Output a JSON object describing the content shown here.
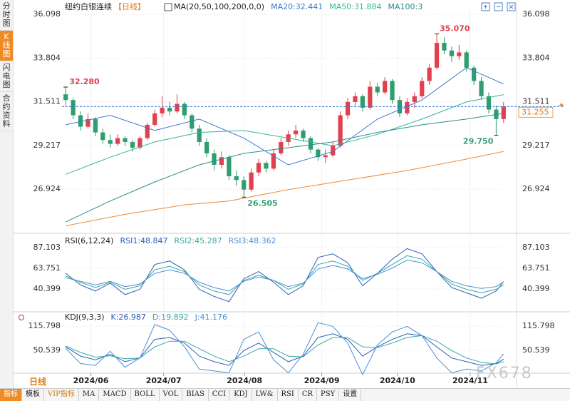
{
  "sidebar": [
    "分时图",
    "K线图",
    "闪电图",
    "合约资料"
  ],
  "period_tab": "日线",
  "toolbar": [
    "指标",
    "模板",
    "VIP指标",
    "MA",
    "MACD",
    "BOLL",
    "VOL",
    "BIAS",
    "CCI",
    "KDJ",
    "LW&",
    "RSI",
    "CR",
    "PSY",
    "设置"
  ],
  "watermark": "FX678",
  "chart_data": [
    {
      "type": "candlestick",
      "title": "纽约白银连续",
      "subtitle": "【日线】",
      "legend_title": "MA(20,50,100,200,0,0)",
      "up_color": "#e2404f",
      "down_color": "#2e9e6e",
      "xlim": [
        -0.5,
        59.5
      ],
      "xticks": [
        {
          "value": 3.4,
          "label": "2024/06"
        },
        {
          "value": 13.2,
          "label": "2024/07"
        },
        {
          "value": 24.1,
          "label": "2024/08"
        },
        {
          "value": 34.5,
          "label": "2024/09"
        },
        {
          "value": 44.7,
          "label": "2024/10"
        },
        {
          "value": 54.5,
          "label": "2024/11"
        }
      ],
      "ylim": [
        24.68,
        36.55
      ],
      "yticks": [
        {
          "value": 36.098,
          "label": "36.098"
        },
        {
          "value": 33.804,
          "label": "33.804"
        },
        {
          "value": 31.511,
          "label": "31.511"
        },
        {
          "value": 29.217,
          "label": "29.217"
        },
        {
          "value": 26.924,
          "label": "26.924"
        }
      ],
      "grid": true,
      "ohlc": [
        [
          31.9,
          32.28,
          31.3,
          31.6
        ],
        [
          31.6,
          31.7,
          30.6,
          30.8
        ],
        [
          30.8,
          31.0,
          30.0,
          30.2
        ],
        [
          30.2,
          30.9,
          30.1,
          30.6
        ],
        [
          30.6,
          30.7,
          29.7,
          29.9
        ],
        [
          29.9,
          30.1,
          29.3,
          29.5
        ],
        [
          29.5,
          29.8,
          29.1,
          29.3
        ],
        [
          29.3,
          29.8,
          29.2,
          29.6
        ],
        [
          29.6,
          29.7,
          29.2,
          29.4
        ],
        [
          29.4,
          29.5,
          28.9,
          29.1
        ],
        [
          29.1,
          29.7,
          29.0,
          29.6
        ],
        [
          29.6,
          30.4,
          29.5,
          30.3
        ],
        [
          30.3,
          31.1,
          30.2,
          30.9
        ],
        [
          30.9,
          31.8,
          30.7,
          31.2
        ],
        [
          31.2,
          31.5,
          30.8,
          31.0
        ],
        [
          31.0,
          31.9,
          30.9,
          31.4
        ],
        [
          31.4,
          31.5,
          30.6,
          30.8
        ],
        [
          30.8,
          30.9,
          29.9,
          30.1
        ],
        [
          30.1,
          30.3,
          29.2,
          29.4
        ],
        [
          29.4,
          29.6,
          28.6,
          28.8
        ],
        [
          28.8,
          29.0,
          27.9,
          28.2
        ],
        [
          28.2,
          28.9,
          28.0,
          28.6
        ],
        [
          28.6,
          28.7,
          27.4,
          27.6
        ],
        [
          27.6,
          27.9,
          27.1,
          27.4
        ],
        [
          27.4,
          27.6,
          26.505,
          26.9
        ],
        [
          26.9,
          28.0,
          26.8,
          27.8
        ],
        [
          27.8,
          28.5,
          27.6,
          28.3
        ],
        [
          28.3,
          28.4,
          27.8,
          28.0
        ],
        [
          28.0,
          29.0,
          27.9,
          28.8
        ],
        [
          28.8,
          29.6,
          28.7,
          29.4
        ],
        [
          29.4,
          30.0,
          29.2,
          29.8
        ],
        [
          29.8,
          30.3,
          29.6,
          30.0
        ],
        [
          30.0,
          30.1,
          29.4,
          29.6
        ],
        [
          29.6,
          29.7,
          28.8,
          29.0
        ],
        [
          29.0,
          29.1,
          28.4,
          28.6
        ],
        [
          28.6,
          29.0,
          28.3,
          28.7
        ],
        [
          28.7,
          29.4,
          28.6,
          29.2
        ],
        [
          29.2,
          31.0,
          29.1,
          30.8
        ],
        [
          30.8,
          31.7,
          30.6,
          31.5
        ],
        [
          31.5,
          32.0,
          31.3,
          31.8
        ],
        [
          31.8,
          31.9,
          31.0,
          31.2
        ],
        [
          31.2,
          32.6,
          31.1,
          32.3
        ],
        [
          32.3,
          32.5,
          31.8,
          32.0
        ],
        [
          32.0,
          32.8,
          31.9,
          32.6
        ],
        [
          32.6,
          32.7,
          31.4,
          31.6
        ],
        [
          31.6,
          31.8,
          30.7,
          30.9
        ],
        [
          30.9,
          31.7,
          30.8,
          31.5
        ],
        [
          31.5,
          32.0,
          31.2,
          31.8
        ],
        [
          31.8,
          32.8,
          31.7,
          32.6
        ],
        [
          32.6,
          33.5,
          32.4,
          33.3
        ],
        [
          33.3,
          35.07,
          33.2,
          34.6
        ],
        [
          34.6,
          34.9,
          34.0,
          34.2
        ],
        [
          34.2,
          34.4,
          33.6,
          33.9
        ],
        [
          33.9,
          34.5,
          33.7,
          34.1
        ],
        [
          34.1,
          34.2,
          33.1,
          33.3
        ],
        [
          33.3,
          33.4,
          32.4,
          32.6
        ],
        [
          32.6,
          32.8,
          31.6,
          31.8
        ],
        [
          31.8,
          32.0,
          30.9,
          31.1
        ],
        [
          31.1,
          31.3,
          29.75,
          30.6
        ],
        [
          30.6,
          31.5,
          30.4,
          31.255
        ]
      ],
      "last": {
        "value": 31.255,
        "label": "31.255"
      },
      "annotations": [
        {
          "label": "32.280",
          "value": 32.28,
          "x": 0,
          "color": "#e2404f"
        },
        {
          "label": "26.505",
          "value": 26.505,
          "x": 24,
          "color": "#2e9e6e"
        },
        {
          "label": "35.070",
          "value": 35.07,
          "x": 50,
          "color": "#e2404f"
        },
        {
          "label": "29.750",
          "value": 29.75,
          "x": 58,
          "color": "#2e9e6e"
        }
      ],
      "series": [
        {
          "label": "MA20:32.441",
          "color": "#3a78d0",
          "x": [
            0,
            6,
            12,
            18,
            24,
            30,
            36,
            42,
            48,
            54,
            59
          ],
          "values": [
            30.3,
            30.8,
            30.0,
            30.6,
            29.6,
            28.2,
            28.9,
            30.6,
            31.6,
            33.3,
            32.441
          ]
        },
        {
          "label": "MA50:31.884",
          "color": "#39b49a",
          "x": [
            0,
            6,
            12,
            18,
            24,
            30,
            36,
            42,
            48,
            54,
            59
          ],
          "values": [
            27.7,
            28.6,
            29.4,
            29.9,
            30.0,
            29.6,
            29.2,
            29.8,
            30.6,
            31.5,
            31.884
          ]
        },
        {
          "label": "MA100:3",
          "color": "#2a8c8c",
          "x": [
            0,
            6,
            12,
            18,
            24,
            30,
            36,
            42,
            48,
            54,
            59
          ],
          "values": [
            25.2,
            26.3,
            27.3,
            28.2,
            28.8,
            29.1,
            29.4,
            29.9,
            30.3,
            30.6,
            30.9
          ]
        },
        {
          "color": "#ee8a3a",
          "x": [
            0,
            8,
            16,
            22,
            30,
            38,
            46,
            54,
            59
          ],
          "values": [
            25.0,
            25.6,
            26.1,
            26.3,
            26.9,
            27.4,
            27.9,
            28.5,
            28.9
          ]
        }
      ]
    },
    {
      "type": "line",
      "legend_title": "RSI(6,12,24)",
      "xlim": [
        -0.5,
        59.5
      ],
      "ylim": [
        17.8,
        98.4
      ],
      "yticks": [
        {
          "value": 87.103,
          "label": "87.103"
        },
        {
          "value": 63.751,
          "label": "63.751"
        },
        {
          "value": 40.399,
          "label": "40.399"
        }
      ],
      "grid": true,
      "series": [
        {
          "label": "RSI1:48.847",
          "color": "#2b5fb8",
          "x": [
            0,
            2,
            4,
            6,
            8,
            10,
            12,
            14,
            16,
            18,
            20,
            22,
            24,
            26,
            28,
            30,
            32,
            34,
            36,
            38,
            40,
            42,
            44,
            46,
            48,
            50,
            52,
            54,
            56,
            58,
            59
          ],
          "values": [
            58,
            45,
            38,
            47,
            34,
            40,
            68,
            72,
            62,
            40,
            32,
            26,
            52,
            60,
            48,
            34,
            44,
            76,
            80,
            70,
            44,
            58,
            74,
            86,
            80,
            60,
            42,
            36,
            30,
            38,
            48.847
          ]
        },
        {
          "label": "RSI2:45.287",
          "color": "#39a8a0",
          "x": [
            0,
            2,
            4,
            6,
            8,
            10,
            12,
            14,
            16,
            18,
            20,
            22,
            24,
            26,
            28,
            30,
            32,
            34,
            36,
            38,
            40,
            42,
            44,
            46,
            48,
            50,
            52,
            54,
            56,
            58,
            59
          ],
          "values": [
            55,
            48,
            42,
            48,
            40,
            44,
            62,
            66,
            60,
            45,
            38,
            34,
            50,
            56,
            50,
            40,
            46,
            68,
            72,
            66,
            50,
            58,
            68,
            78,
            74,
            60,
            46,
            40,
            36,
            40,
            45.287
          ]
        },
        {
          "label": "RSI3:48.362",
          "color": "#4a8fd8",
          "x": [
            0,
            2,
            4,
            6,
            8,
            10,
            12,
            14,
            16,
            18,
            20,
            22,
            24,
            26,
            28,
            30,
            32,
            34,
            36,
            38,
            40,
            42,
            44,
            46,
            48,
            50,
            52,
            54,
            56,
            58,
            59
          ],
          "values": [
            53,
            49,
            45,
            49,
            43,
            46,
            58,
            62,
            58,
            48,
            42,
            38,
            49,
            54,
            50,
            43,
            47,
            63,
            67,
            63,
            52,
            57,
            64,
            73,
            70,
            60,
            49,
            44,
            41,
            43,
            48.362
          ]
        }
      ]
    },
    {
      "type": "line",
      "legend_title": "KDJ(9,3,3)",
      "xlim": [
        -0.5,
        59.5
      ],
      "ylim": [
        -9,
        148.4
      ],
      "yticks": [
        {
          "value": 115.798,
          "label": "115.798"
        },
        {
          "value": 50.539,
          "label": "50.539"
        }
      ],
      "grid": true,
      "series": [
        {
          "label": "K:26.987",
          "color": "#2b5fb8",
          "x": [
            0,
            2,
            4,
            6,
            8,
            10,
            12,
            14,
            16,
            18,
            20,
            22,
            24,
            26,
            28,
            30,
            32,
            34,
            36,
            38,
            40,
            42,
            44,
            46,
            48,
            50,
            52,
            54,
            56,
            58,
            59
          ],
          "values": [
            60,
            35,
            25,
            40,
            20,
            30,
            80,
            85,
            70,
            35,
            20,
            10,
            50,
            70,
            45,
            20,
            35,
            85,
            95,
            80,
            35,
            60,
            80,
            95,
            90,
            60,
            30,
            20,
            10,
            15,
            26.987
          ]
        },
        {
          "label": "D:19.892",
          "color": "#39a8a0",
          "x": [
            0,
            2,
            4,
            6,
            8,
            10,
            12,
            14,
            16,
            18,
            20,
            22,
            24,
            26,
            28,
            30,
            32,
            34,
            36,
            38,
            40,
            42,
            44,
            46,
            48,
            50,
            52,
            54,
            56,
            58,
            59
          ],
          "values": [
            62,
            45,
            32,
            36,
            28,
            30,
            60,
            75,
            75,
            55,
            35,
            20,
            35,
            55,
            55,
            35,
            33,
            65,
            85,
            85,
            60,
            58,
            70,
            85,
            90,
            75,
            50,
            30,
            18,
            14,
            19.892
          ]
        },
        {
          "label": "J:41.176",
          "color": "#4a8fd8",
          "x": [
            0,
            2,
            4,
            6,
            8,
            10,
            12,
            14,
            16,
            18,
            20,
            22,
            24,
            26,
            28,
            30,
            32,
            34,
            36,
            38,
            40,
            42,
            44,
            46,
            48,
            50,
            52,
            54,
            56,
            58,
            59
          ],
          "values": [
            56,
            15,
            10,
            48,
            5,
            30,
            120,
            105,
            60,
            0,
            -5,
            -10,
            80,
            100,
            25,
            -10,
            40,
            125,
            115,
            70,
            -15,
            65,
            100,
            115,
            90,
            30,
            -10,
            0,
            -5,
            17,
            41.176
          ]
        }
      ]
    }
  ]
}
